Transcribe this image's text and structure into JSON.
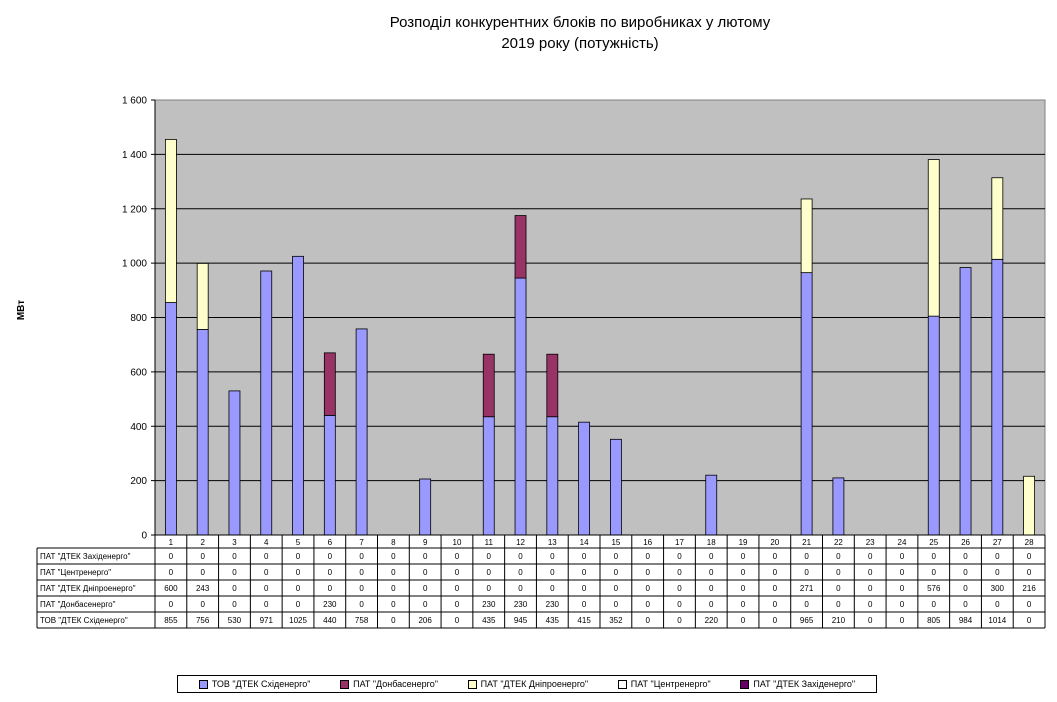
{
  "chart_data": {
    "type": "bar",
    "stacked": true,
    "title": "Розподіл конкурентних  блоків по виробниках  у лютому\n2019 року (потужність)",
    "ylabel": "МВт",
    "ylim": [
      0,
      1600
    ],
    "yticks": [
      0,
      200,
      400,
      600,
      800,
      1000,
      1200,
      1400,
      1600
    ],
    "ytick_labels": [
      "0",
      "200",
      "400",
      "600",
      "800",
      "1 000",
      "1 200",
      "1 400",
      "1 600"
    ],
    "grid": true,
    "legend_position": "bottom",
    "categories": [
      "1",
      "2",
      "3",
      "4",
      "5",
      "6",
      "7",
      "8",
      "9",
      "10",
      "11",
      "12",
      "13",
      "14",
      "15",
      "16",
      "17",
      "18",
      "19",
      "20",
      "21",
      "22",
      "23",
      "24",
      "25",
      "26",
      "27",
      "28"
    ],
    "series": [
      {
        "name": "ТОВ \"ДТЕК Східенерго\"",
        "color": "#9999ff",
        "values": [
          855,
          756,
          530,
          971,
          1025,
          440,
          758,
          0,
          206,
          0,
          435,
          945,
          435,
          415,
          352,
          0,
          0,
          220,
          0,
          0,
          965,
          210,
          0,
          0,
          805,
          984,
          1014,
          0
        ]
      },
      {
        "name": "ПАТ \"Донбасенерго\"",
        "color": "#993366",
        "values": [
          0,
          0,
          0,
          0,
          0,
          230,
          0,
          0,
          0,
          0,
          230,
          230,
          230,
          0,
          0,
          0,
          0,
          0,
          0,
          0,
          0,
          0,
          0,
          0,
          0,
          0,
          0,
          0
        ]
      },
      {
        "name": "ПАТ \"ДТЕК Дніпроенерго\"",
        "color": "#ffffcc",
        "values": [
          600,
          243,
          0,
          0,
          0,
          0,
          0,
          0,
          0,
          0,
          0,
          0,
          0,
          0,
          0,
          0,
          0,
          0,
          0,
          0,
          271,
          0,
          0,
          0,
          576,
          0,
          300,
          216
        ]
      },
      {
        "name": "ПАТ \"Центренерго\"",
        "color": "#ffffff",
        "values": [
          0,
          0,
          0,
          0,
          0,
          0,
          0,
          0,
          0,
          0,
          0,
          0,
          0,
          0,
          0,
          0,
          0,
          0,
          0,
          0,
          0,
          0,
          0,
          0,
          0,
          0,
          0,
          0
        ]
      },
      {
        "name": "ПАТ \"ДТЕК Західенерго\"",
        "color": "#660066",
        "values": [
          0,
          0,
          0,
          0,
          0,
          0,
          0,
          0,
          0,
          0,
          0,
          0,
          0,
          0,
          0,
          0,
          0,
          0,
          0,
          0,
          0,
          0,
          0,
          0,
          0,
          0,
          0,
          0
        ]
      }
    ],
    "table_row_order": [
      4,
      3,
      2,
      1,
      0
    ]
  }
}
